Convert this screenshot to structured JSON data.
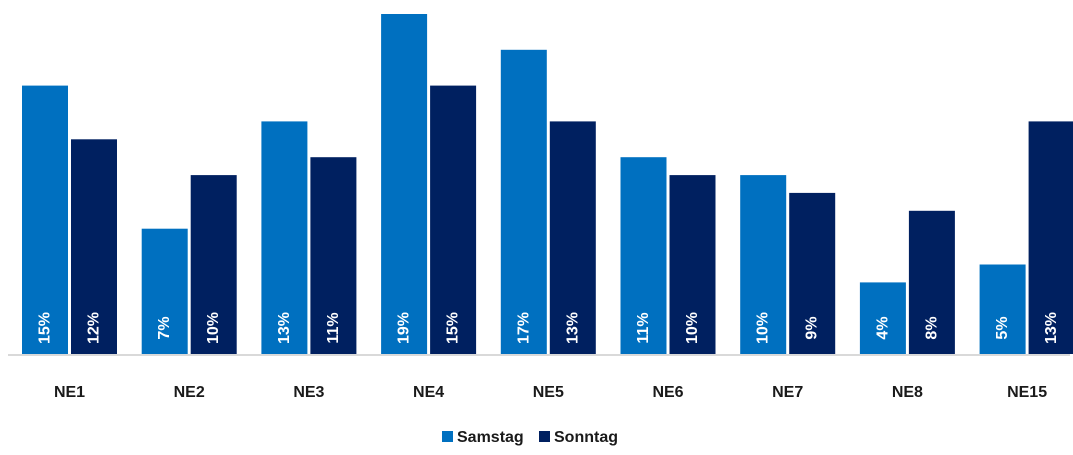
{
  "chart_data": {
    "type": "bar",
    "categories": [
      "NE1",
      "NE2",
      "NE3",
      "NE4",
      "NE5",
      "NE6",
      "NE7",
      "NE8",
      "NE15"
    ],
    "series": [
      {
        "name": "Samstag",
        "color": "#0070c0",
        "values": [
          15,
          7,
          13,
          19,
          17,
          11,
          10,
          4,
          5
        ]
      },
      {
        "name": "Sonntag",
        "color": "#002060",
        "values": [
          12,
          10,
          11,
          15,
          13,
          10,
          9,
          8,
          13
        ]
      }
    ],
    "data_labels": [
      [
        "15%",
        "7%",
        "13%",
        "19%",
        "17%",
        "11%",
        "10%",
        "4%",
        "5%"
      ],
      [
        "12%",
        "10%",
        "11%",
        "15%",
        "13%",
        "10%",
        "9%",
        "8%",
        "13%"
      ]
    ],
    "unit": "%",
    "ylim": [
      0,
      19
    ],
    "grid": false,
    "legend_position": "bottom-center",
    "axis_color": "#d9d9d9"
  }
}
